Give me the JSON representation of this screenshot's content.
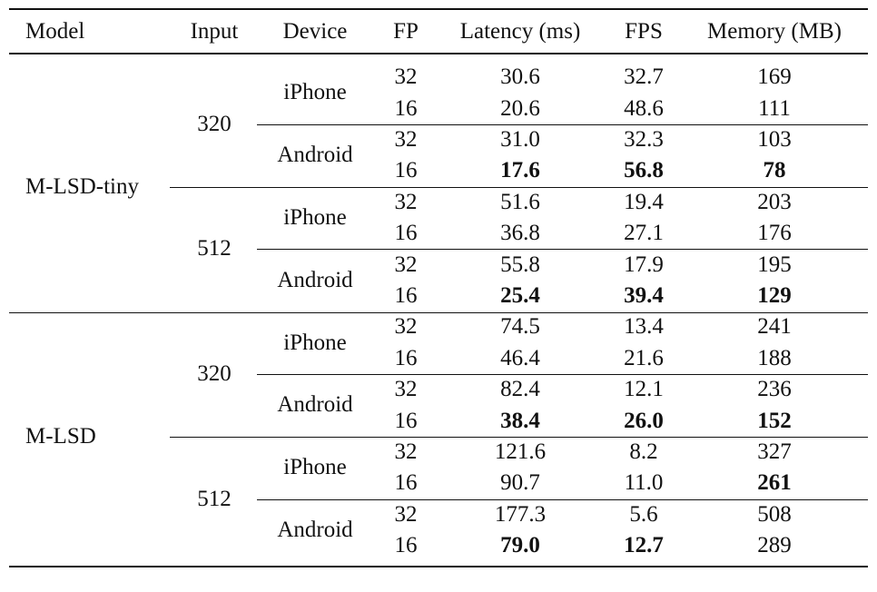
{
  "table": {
    "columns": [
      "Model",
      "Input",
      "Device",
      "FP",
      "Latency (ms)",
      "FPS",
      "Memory (MB)"
    ],
    "groups": [
      {
        "model": "M-LSD-tiny",
        "inputs": [
          {
            "input": "320",
            "devices": [
              {
                "device": "iPhone",
                "rows": [
                  {
                    "fp": "32",
                    "latency": "30.6",
                    "fps": "32.7",
                    "memory": "169",
                    "bold": []
                  },
                  {
                    "fp": "16",
                    "latency": "20.6",
                    "fps": "48.6",
                    "memory": "111",
                    "bold": []
                  }
                ]
              },
              {
                "device": "Android",
                "rows": [
                  {
                    "fp": "32",
                    "latency": "31.0",
                    "fps": "32.3",
                    "memory": "103",
                    "bold": []
                  },
                  {
                    "fp": "16",
                    "latency": "17.6",
                    "fps": "56.8",
                    "memory": "78",
                    "bold": [
                      "latency",
                      "fps",
                      "memory"
                    ]
                  }
                ]
              }
            ]
          },
          {
            "input": "512",
            "devices": [
              {
                "device": "iPhone",
                "rows": [
                  {
                    "fp": "32",
                    "latency": "51.6",
                    "fps": "19.4",
                    "memory": "203",
                    "bold": []
                  },
                  {
                    "fp": "16",
                    "latency": "36.8",
                    "fps": "27.1",
                    "memory": "176",
                    "bold": []
                  }
                ]
              },
              {
                "device": "Android",
                "rows": [
                  {
                    "fp": "32",
                    "latency": "55.8",
                    "fps": "17.9",
                    "memory": "195",
                    "bold": []
                  },
                  {
                    "fp": "16",
                    "latency": "25.4",
                    "fps": "39.4",
                    "memory": "129",
                    "bold": [
                      "latency",
                      "fps",
                      "memory"
                    ]
                  }
                ]
              }
            ]
          }
        ]
      },
      {
        "model": "M-LSD",
        "inputs": [
          {
            "input": "320",
            "devices": [
              {
                "device": "iPhone",
                "rows": [
                  {
                    "fp": "32",
                    "latency": "74.5",
                    "fps": "13.4",
                    "memory": "241",
                    "bold": []
                  },
                  {
                    "fp": "16",
                    "latency": "46.4",
                    "fps": "21.6",
                    "memory": "188",
                    "bold": []
                  }
                ]
              },
              {
                "device": "Android",
                "rows": [
                  {
                    "fp": "32",
                    "latency": "82.4",
                    "fps": "12.1",
                    "memory": "236",
                    "bold": []
                  },
                  {
                    "fp": "16",
                    "latency": "38.4",
                    "fps": "26.0",
                    "memory": "152",
                    "bold": [
                      "latency",
                      "fps",
                      "memory"
                    ]
                  }
                ]
              }
            ]
          },
          {
            "input": "512",
            "devices": [
              {
                "device": "iPhone",
                "rows": [
                  {
                    "fp": "32",
                    "latency": "121.6",
                    "fps": "8.2",
                    "memory": "327",
                    "bold": []
                  },
                  {
                    "fp": "16",
                    "latency": "90.7",
                    "fps": "11.0",
                    "memory": "261",
                    "bold": [
                      "memory"
                    ]
                  }
                ]
              },
              {
                "device": "Android",
                "rows": [
                  {
                    "fp": "32",
                    "latency": "177.3",
                    "fps": "5.6",
                    "memory": "508",
                    "bold": []
                  },
                  {
                    "fp": "16",
                    "latency": "79.0",
                    "fps": "12.7",
                    "memory": "289",
                    "bold": [
                      "latency",
                      "fps"
                    ]
                  }
                ]
              }
            ]
          }
        ]
      }
    ]
  }
}
